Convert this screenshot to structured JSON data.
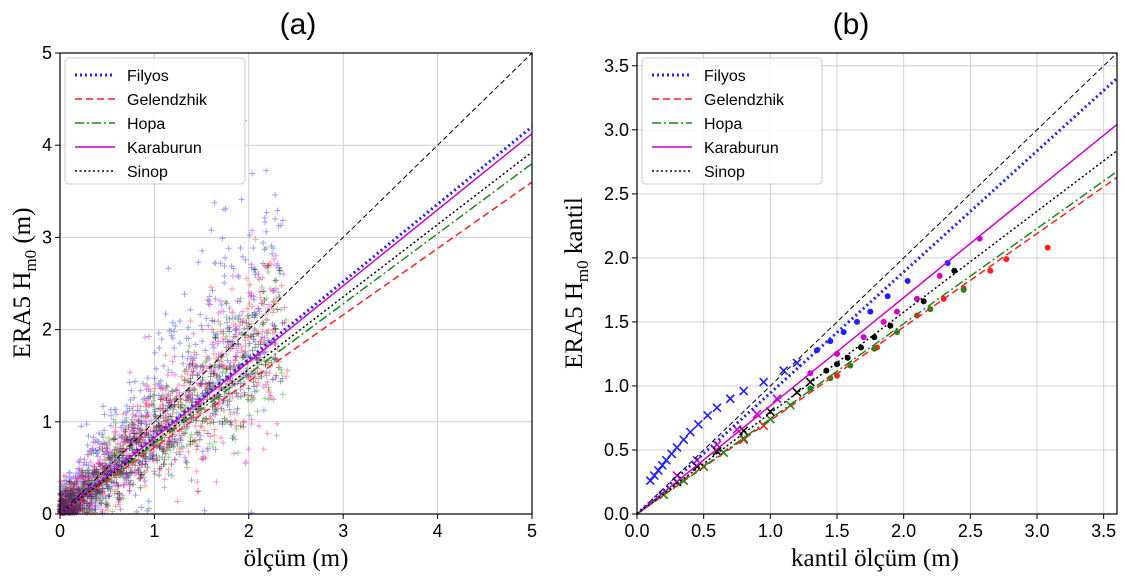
{
  "colors": {
    "Filyos": "#1f1fff",
    "Gelendzhik": "#ff1f1f",
    "Hopa": "#1a8a1a",
    "Karaburun": "#cc00cc",
    "Sinop": "#000000",
    "identity": "#000000"
  },
  "chart_data": [
    {
      "type": "scatter",
      "panel_title": "(a)",
      "xlabel": "ölçüm (m)",
      "ylabel": {
        "prefix": "ERA5 H",
        "sub": "m0",
        "suffix": " (m)"
      },
      "xlim": [
        0,
        5
      ],
      "ylim": [
        0,
        5
      ],
      "xticks": [
        0,
        1,
        2,
        3,
        4,
        5
      ],
      "yticks": [
        0,
        1,
        2,
        3,
        4,
        5
      ],
      "grid": true,
      "legend_position": "top-left",
      "identity_line": true,
      "fit_lines": [
        {
          "name": "Filyos",
          "slope": 0.84,
          "style": "dotted"
        },
        {
          "name": "Gelendzhik",
          "slope": 0.72,
          "style": "dashed"
        },
        {
          "name": "Hopa",
          "slope": 0.76,
          "style": "dashdot"
        },
        {
          "name": "Karaburun",
          "slope": 0.825,
          "style": "solid"
        },
        {
          "name": "Sinop",
          "slope": 0.785,
          "style": "dotted-fine"
        }
      ],
      "scatter_series": [
        {
          "name": "Filyos",
          "ratio": 1.15,
          "spread": 0.55,
          "marker": "+"
        },
        {
          "name": "Gelendzhik",
          "ratio": 0.88,
          "spread": 0.35,
          "marker": "+"
        },
        {
          "name": "Hopa",
          "ratio": 0.85,
          "spread": 0.3,
          "marker": "+"
        },
        {
          "name": "Karaburun",
          "ratio": 0.95,
          "spread": 0.35,
          "marker": "+"
        },
        {
          "name": "Sinop",
          "ratio": 0.85,
          "spread": 0.25,
          "marker": "+"
        }
      ]
    },
    {
      "type": "scatter",
      "panel_title": "(b)",
      "xlabel": "kantil ölçüm (m)",
      "ylabel": {
        "prefix": "ERA5 H",
        "sub": "m0",
        "suffix": " kantil"
      },
      "xlim": [
        0,
        3.6
      ],
      "ylim": [
        0,
        3.6
      ],
      "xticks": [
        0.0,
        0.5,
        1.0,
        1.5,
        2.0,
        2.5,
        3.0,
        3.5
      ],
      "yticks": [
        0.0,
        0.5,
        1.0,
        1.5,
        2.0,
        2.5,
        3.0,
        3.5
      ],
      "tick_format": "0.0",
      "grid": true,
      "legend_position": "top-left",
      "identity_line": true,
      "fit_lines": [
        {
          "name": "Filyos",
          "slope": 0.945,
          "style": "dotted"
        },
        {
          "name": "Gelendzhik",
          "slope": 0.73,
          "style": "dashed"
        },
        {
          "name": "Hopa",
          "slope": 0.743,
          "style": "dashdot"
        },
        {
          "name": "Karaburun",
          "slope": 0.845,
          "style": "solid"
        },
        {
          "name": "Sinop",
          "slope": 0.788,
          "style": "dotted-fine"
        }
      ],
      "quantile_series": [
        {
          "name": "Filyos",
          "cross": [
            [
              0.1,
              0.26
            ],
            [
              0.13,
              0.3
            ],
            [
              0.16,
              0.34
            ],
            [
              0.19,
              0.38
            ],
            [
              0.22,
              0.42
            ],
            [
              0.26,
              0.47
            ],
            [
              0.3,
              0.52
            ],
            [
              0.35,
              0.58
            ],
            [
              0.4,
              0.64
            ],
            [
              0.46,
              0.7
            ],
            [
              0.53,
              0.77
            ],
            [
              0.6,
              0.83
            ],
            [
              0.7,
              0.9
            ],
            [
              0.8,
              0.96
            ],
            [
              0.95,
              1.03
            ],
            [
              1.1,
              1.12
            ],
            [
              1.2,
              1.18
            ]
          ],
          "dot": [
            [
              1.35,
              1.28
            ],
            [
              1.45,
              1.35
            ],
            [
              1.55,
              1.42
            ],
            [
              1.65,
              1.5
            ],
            [
              1.75,
              1.58
            ],
            [
              1.88,
              1.7
            ],
            [
              2.03,
              1.82
            ],
            [
              2.33,
              1.96
            ]
          ]
        },
        {
          "name": "Gelendzhik",
          "cross": [
            [
              0.2,
              0.15
            ],
            [
              0.35,
              0.26
            ],
            [
              0.5,
              0.37
            ],
            [
              0.65,
              0.48
            ],
            [
              0.8,
              0.58
            ],
            [
              0.95,
              0.69
            ]
          ],
          "dot": [
            [
              1.5,
              1.08
            ],
            [
              1.8,
              1.3
            ],
            [
              2.1,
              1.55
            ],
            [
              2.3,
              1.68
            ],
            [
              2.45,
              1.76
            ],
            [
              2.65,
              1.9
            ],
            [
              2.77,
              1.99
            ],
            [
              3.08,
              2.08
            ]
          ]
        },
        {
          "name": "Hopa",
          "cross": [
            [
              0.2,
              0.15
            ],
            [
              0.35,
              0.26
            ],
            [
              0.5,
              0.37
            ],
            [
              0.65,
              0.48
            ],
            [
              0.8,
              0.59
            ],
            [
              1.0,
              0.74
            ],
            [
              1.15,
              0.85
            ]
          ],
          "dot": [
            [
              1.3,
              0.98
            ],
            [
              1.45,
              1.06
            ],
            [
              1.6,
              1.16
            ],
            [
              1.78,
              1.29
            ],
            [
              1.95,
              1.42
            ],
            [
              2.2,
              1.6
            ],
            [
              2.45,
              1.75
            ]
          ]
        },
        {
          "name": "Karaburun",
          "cross": [
            [
              0.3,
              0.3
            ],
            [
              0.45,
              0.42
            ],
            [
              0.6,
              0.54
            ],
            [
              0.75,
              0.66
            ],
            [
              0.9,
              0.78
            ],
            [
              1.05,
              0.9
            ]
          ],
          "dot": [
            [
              1.3,
              1.1
            ],
            [
              1.5,
              1.25
            ],
            [
              1.7,
              1.38
            ],
            [
              1.85,
              1.5
            ],
            [
              1.95,
              1.58
            ],
            [
              2.1,
              1.68
            ],
            [
              2.27,
              1.86
            ],
            [
              2.57,
              2.15
            ]
          ]
        },
        {
          "name": "Sinop",
          "cross": [
            [
              0.3,
              0.25
            ],
            [
              0.45,
              0.37
            ],
            [
              0.6,
              0.49
            ],
            [
              0.8,
              0.65
            ],
            [
              1.0,
              0.8
            ],
            [
              1.2,
              0.95
            ],
            [
              1.3,
              1.03
            ]
          ],
          "dot": [
            [
              1.42,
              1.12
            ],
            [
              1.5,
              1.17
            ],
            [
              1.58,
              1.22
            ],
            [
              1.68,
              1.3
            ],
            [
              1.78,
              1.38
            ],
            [
              1.9,
              1.47
            ],
            [
              2.15,
              1.66
            ],
            [
              2.38,
              1.9
            ]
          ]
        }
      ]
    }
  ]
}
